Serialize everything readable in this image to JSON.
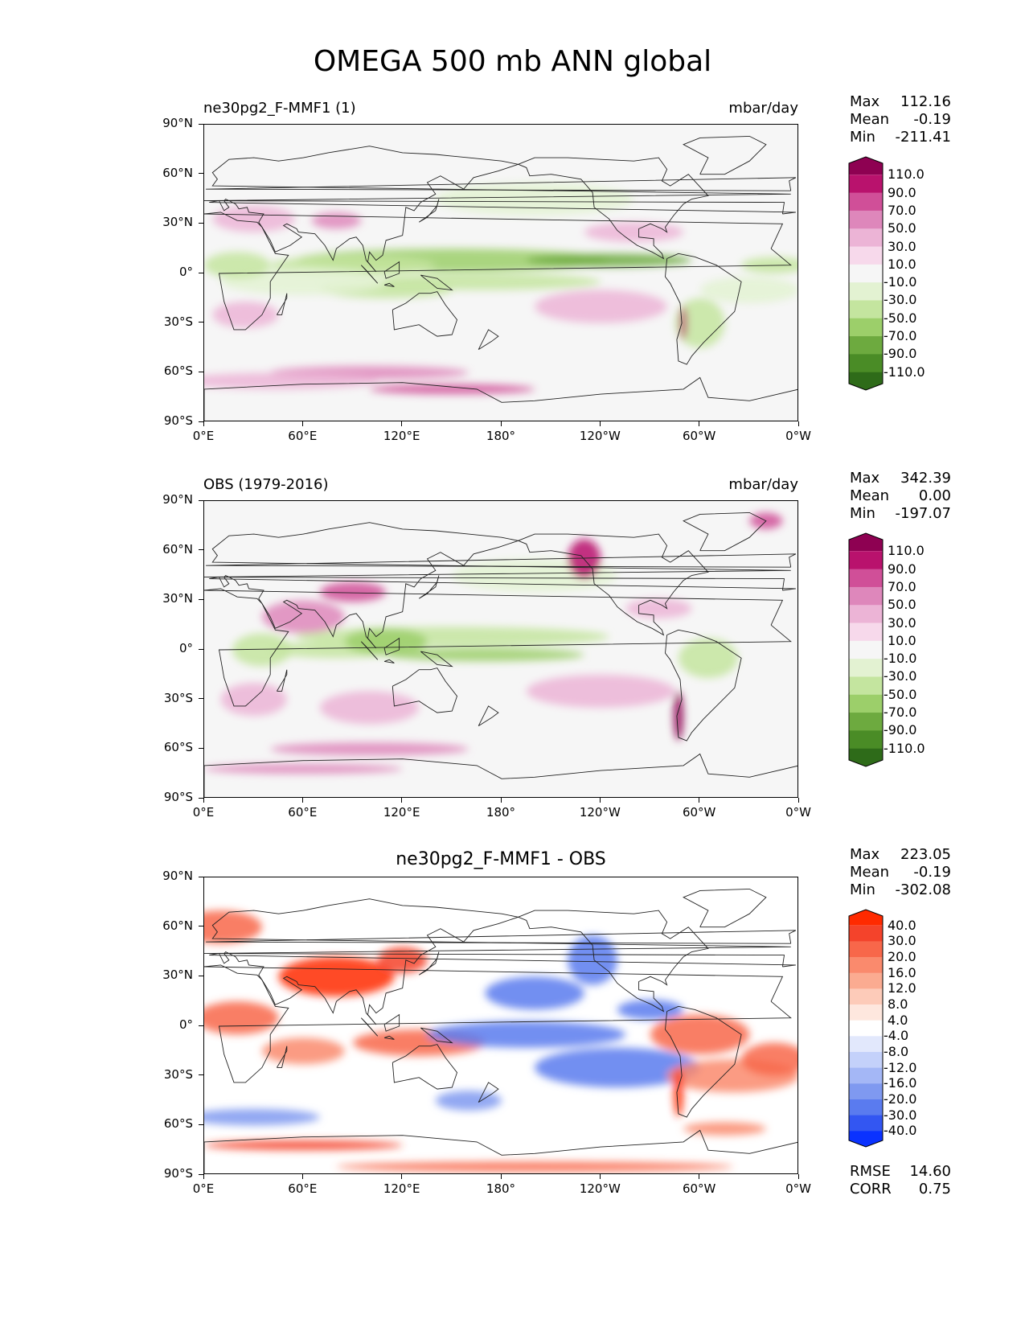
{
  "figure": {
    "title": "OMEGA 500 mb ANN global"
  },
  "axes": {
    "lat_labels": [
      "90°N",
      "60°N",
      "30°N",
      "0°",
      "30°S",
      "60°S",
      "90°S"
    ],
    "lon_labels": [
      "0°E",
      "60°E",
      "120°E",
      "180°",
      "120°W",
      "60°W",
      "0°W"
    ]
  },
  "panels": [
    {
      "left_title": "ne30pg2_F-MMF1 (1)",
      "center_title": "",
      "units": "mbar/day",
      "stats": [
        [
          "Max",
          "112.16"
        ],
        [
          "Mean",
          "-0.19"
        ],
        [
          "Min",
          "-211.41"
        ]
      ],
      "colorbar": {
        "labels": [
          "110.0",
          "90.0",
          "70.0",
          "50.0",
          "30.0",
          "10.0",
          "-10.0",
          "-30.0",
          "-50.0",
          "-70.0",
          "-90.0",
          "-110.0"
        ],
        "colors": [
          "#8e0152",
          "#b9126d",
          "#d04f98",
          "#de87bb",
          "#ecb4d6",
          "#f7d9eb",
          "#f6f6f6",
          "#e3f2d2",
          "#c4e59f",
          "#9ccf6a",
          "#6daa3f",
          "#4a8c26",
          "#2e6b19"
        ]
      }
    },
    {
      "left_title": "OBS (1979-2016)",
      "center_title": "",
      "units": "mbar/day",
      "stats": [
        [
          "Max",
          "342.39"
        ],
        [
          "Mean",
          "0.00"
        ],
        [
          "Min",
          "-197.07"
        ]
      ],
      "colorbar": {
        "labels": [
          "110.0",
          "90.0",
          "70.0",
          "50.0",
          "30.0",
          "10.0",
          "-10.0",
          "-30.0",
          "-50.0",
          "-70.0",
          "-90.0",
          "-110.0"
        ],
        "colors": [
          "#8e0152",
          "#b9126d",
          "#d04f98",
          "#de87bb",
          "#ecb4d6",
          "#f7d9eb",
          "#f6f6f6",
          "#e3f2d2",
          "#c4e59f",
          "#9ccf6a",
          "#6daa3f",
          "#4a8c26",
          "#2e6b19"
        ]
      }
    },
    {
      "left_title": "",
      "center_title": "ne30pg2_F-MMF1 - OBS",
      "units": "",
      "stats": [
        [
          "Max",
          "223.05"
        ],
        [
          "Mean",
          "-0.19"
        ],
        [
          "Min",
          "-302.08"
        ]
      ],
      "extra_stats": [
        [
          "RMSE",
          "14.60"
        ],
        [
          "CORR",
          "0.75"
        ]
      ],
      "colorbar": {
        "labels": [
          "40.0",
          "30.0",
          "20.0",
          "16.0",
          "12.0",
          "8.0",
          "4.0",
          "-4.0",
          "-8.0",
          "-12.0",
          "-16.0",
          "-20.0",
          "-30.0",
          "-40.0"
        ],
        "colors": [
          "#ff2a00",
          "#f4432b",
          "#f8674a",
          "#fa8a6d",
          "#fbab91",
          "#fdcbb9",
          "#fee7de",
          "#ffffff",
          "#e2e8fc",
          "#c4d1fa",
          "#a4b7f6",
          "#7f99f0",
          "#5a7bef",
          "#3356f2",
          "#0a32ff"
        ]
      }
    }
  ]
}
